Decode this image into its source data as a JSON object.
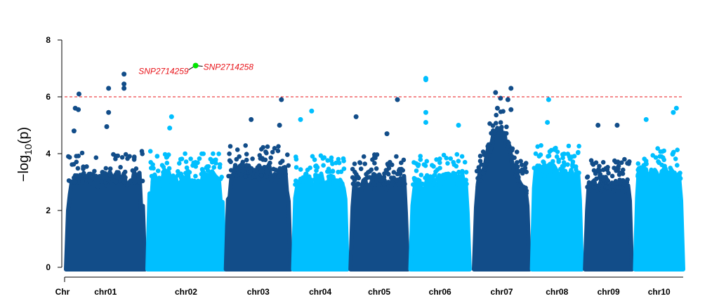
{
  "chart_data": {
    "type": "scatter",
    "title": "",
    "xlabel": "Chr",
    "ylabel_main": "−log",
    "ylabel_sub": "10",
    "ylabel_arg": "(p)",
    "ylim": [
      0,
      8
    ],
    "yticks": [
      "0",
      "2",
      "4",
      "6",
      "8"
    ],
    "threshold": 6,
    "threshold_color": "#e8141a",
    "colors": {
      "dark": "#124d89",
      "light": "#00bfff",
      "highlight": "#00e600",
      "label": "#e8141a"
    },
    "x_range": [
      0,
      100
    ],
    "chromosomes": [
      {
        "name": "chr01",
        "start": 0.0,
        "end": 12.8,
        "color": "dark",
        "dense_level": 3.5
      },
      {
        "name": "chr02",
        "start": 13.2,
        "end": 25.7,
        "color": "light",
        "dense_level": 3.5
      },
      {
        "name": "chr03",
        "start": 25.9,
        "end": 36.4,
        "color": "dark",
        "dense_level": 3.7
      },
      {
        "name": "chr04",
        "start": 36.8,
        "end": 45.6,
        "color": "light",
        "dense_level": 3.4
      },
      {
        "name": "chr05",
        "start": 46.1,
        "end": 55.4,
        "color": "dark",
        "dense_level": 3.4
      },
      {
        "name": "chr06",
        "start": 55.8,
        "end": 65.4,
        "color": "light",
        "dense_level": 3.4
      },
      {
        "name": "chr07",
        "start": 66.1,
        "end": 75.1,
        "color": "dark",
        "dense_level": 4.6
      },
      {
        "name": "chr08",
        "start": 75.5,
        "end": 83.6,
        "color": "light",
        "dense_level": 3.7
      },
      {
        "name": "chr09",
        "start": 84.1,
        "end": 91.7,
        "color": "dark",
        "dense_level": 3.3
      },
      {
        "name": "chr10",
        "start": 92.2,
        "end": 100.0,
        "color": "light",
        "dense_level": 3.6
      }
    ],
    "top_points": [
      {
        "chr": "chr01",
        "x": 2.1,
        "y": 6.1
      },
      {
        "chr": "chr01",
        "x": 1.5,
        "y": 5.6
      },
      {
        "chr": "chr01",
        "x": 2.0,
        "y": 5.55
      },
      {
        "chr": "chr01",
        "x": 6.9,
        "y": 6.3
      },
      {
        "chr": "chr01",
        "x": 6.9,
        "y": 5.45
      },
      {
        "chr": "chr01",
        "x": 9.4,
        "y": 6.8
      },
      {
        "chr": "chr01",
        "x": 9.4,
        "y": 6.45
      },
      {
        "chr": "chr01",
        "x": 9.4,
        "y": 6.3
      },
      {
        "chr": "chr01",
        "x": 1.3,
        "y": 4.8
      },
      {
        "chr": "chr01",
        "x": 6.6,
        "y": 4.95
      },
      {
        "chr": "chr02",
        "x": 17.1,
        "y": 5.3
      },
      {
        "chr": "chr02",
        "x": 16.8,
        "y": 4.9
      },
      {
        "chr": "chr03",
        "x": 34.9,
        "y": 5.9
      },
      {
        "chr": "chr03",
        "x": 30.0,
        "y": 5.2
      },
      {
        "chr": "chr03",
        "x": 34.6,
        "y": 5.0
      },
      {
        "chr": "chr04",
        "x": 39.8,
        "y": 5.5
      },
      {
        "chr": "chr04",
        "x": 38.0,
        "y": 5.2
      },
      {
        "chr": "chr05",
        "x": 47.0,
        "y": 5.3
      },
      {
        "chr": "chr05",
        "x": 53.7,
        "y": 5.9
      },
      {
        "chr": "chr05",
        "x": 52.0,
        "y": 4.7
      },
      {
        "chr": "chr06",
        "x": 58.3,
        "y": 6.65
      },
      {
        "chr": "chr06",
        "x": 58.3,
        "y": 6.6
      },
      {
        "chr": "chr06",
        "x": 58.3,
        "y": 5.45
      },
      {
        "chr": "chr06",
        "x": 58.3,
        "y": 5.1
      },
      {
        "chr": "chr06",
        "x": 63.6,
        "y": 5.0
      },
      {
        "chr": "chr07",
        "x": 69.6,
        "y": 6.15
      },
      {
        "chr": "chr07",
        "x": 72.1,
        "y": 6.3
      },
      {
        "chr": "chr07",
        "x": 70.4,
        "y": 5.95
      },
      {
        "chr": "chr07",
        "x": 71.6,
        "y": 5.9
      },
      {
        "chr": "chr07",
        "x": 72.1,
        "y": 5.55
      },
      {
        "chr": "chr07",
        "x": 69.9,
        "y": 5.6
      },
      {
        "chr": "chr08",
        "x": 78.2,
        "y": 5.9
      },
      {
        "chr": "chr08",
        "x": 78.0,
        "y": 5.1
      },
      {
        "chr": "chr09",
        "x": 86.2,
        "y": 5.0
      },
      {
        "chr": "chr09",
        "x": 89.3,
        "y": 5.0
      },
      {
        "chr": "chr10",
        "x": 98.9,
        "y": 5.6
      },
      {
        "chr": "chr10",
        "x": 98.4,
        "y": 5.45
      },
      {
        "chr": "chr10",
        "x": 94.0,
        "y": 5.2
      }
    ],
    "highlighted": [
      {
        "chr": "chr02",
        "x": 21.0,
        "y": 7.1,
        "labels": [
          "SNP2714259",
          "SNP2714258"
        ]
      }
    ]
  }
}
